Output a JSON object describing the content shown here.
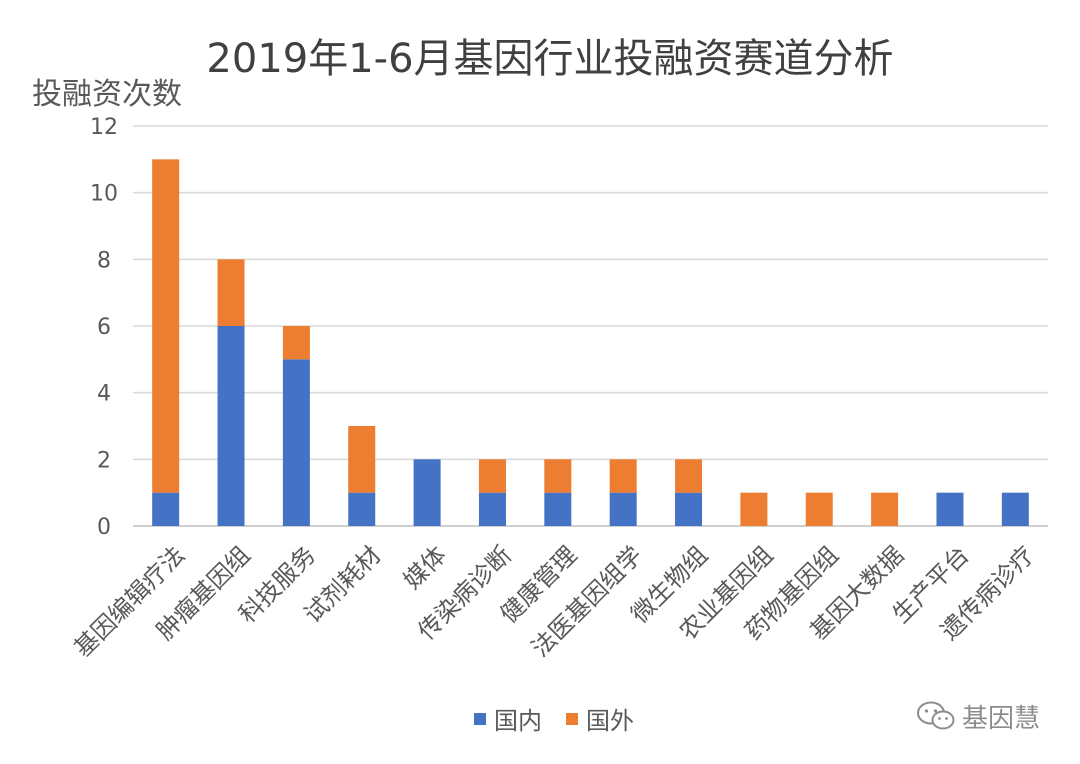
{
  "chart_data": {
    "type": "bar",
    "stacked": true,
    "title": "2019年1-6月基因行业投融资赛道分析",
    "ylabel": "投融资次数",
    "xlabel": "",
    "ylim": [
      0,
      12
    ],
    "yticks": [
      0,
      2,
      4,
      6,
      8,
      10,
      12
    ],
    "grid": true,
    "legend_position": "bottom",
    "categories": [
      "基因编辑疗法",
      "肿瘤基因组",
      "科技服务",
      "试剂耗材",
      "媒体",
      "传染病诊断",
      "健康管理",
      "法医基因组学",
      "微生物组",
      "农业基因组",
      "药物基因组",
      "基因大数据",
      "生产平台",
      "遗传病诊疗"
    ],
    "series": [
      {
        "name": "国内",
        "color": "#4472c4",
        "values": [
          1,
          6,
          5,
          1,
          2,
          1,
          1,
          1,
          1,
          0,
          0,
          0,
          1,
          1
        ]
      },
      {
        "name": "国外",
        "color": "#ed7d31",
        "values": [
          10,
          2,
          1,
          2,
          0,
          1,
          1,
          1,
          1,
          1,
          1,
          1,
          0,
          0
        ]
      }
    ]
  },
  "watermark": {
    "text": "基因慧",
    "icon": "wechat-icon"
  }
}
